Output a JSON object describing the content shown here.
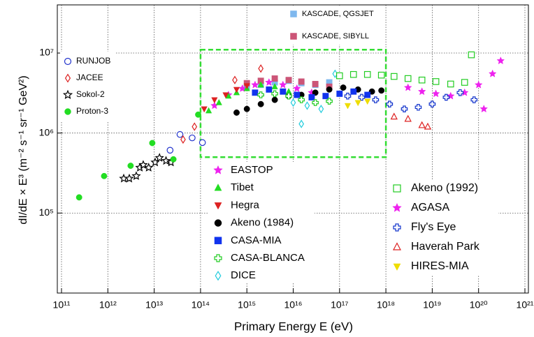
{
  "chart_data": {
    "type": "scatter",
    "x_label": "Primary Energy E (eV)",
    "y_label": "dI/dE × E³   (m⁻² s⁻¹ sr⁻¹ GeV²)",
    "xscale": "log",
    "yscale": "log",
    "grid": true,
    "xlim": [
      100000000000.0,
      1e+21
    ],
    "ylim": [
      10000.0,
      40000000.0
    ],
    "xticks": [
      {
        "value": 100000000000.0,
        "label": "10¹¹"
      },
      {
        "value": 1000000000000.0,
        "label": "10¹²"
      },
      {
        "value": 10000000000000.0,
        "label": "10¹³"
      },
      {
        "value": 100000000000000.0,
        "label": "10¹⁴"
      },
      {
        "value": 1000000000000000.0,
        "label": "10¹⁵"
      },
      {
        "value": 1e+16,
        "label": "10¹⁶"
      },
      {
        "value": 1e+17,
        "label": "10¹⁷"
      },
      {
        "value": 1e+18,
        "label": "10¹⁸"
      },
      {
        "value": 1e+19,
        "label": "10¹⁹"
      },
      {
        "value": 1e+20,
        "label": "10²⁰"
      },
      {
        "value": 1e+21,
        "label": "10²¹"
      }
    ],
    "yticks": [
      {
        "value": 100000.0,
        "label": "10⁵"
      },
      {
        "value": 1000000.0,
        "label": "10⁶"
      },
      {
        "value": 10000000.0,
        "label": "10⁷"
      }
    ],
    "highlight_box": {
      "x": [
        100000000000000.0,
        1e+18
      ],
      "y": [
        500000.0,
        11000000.0
      ],
      "color": "#33dd33"
    },
    "series": [
      {
        "name": "RUNJOB",
        "color": "#2233cc",
        "marker": "circle-open",
        "x": [
          22000000000000.0,
          36000000000000.0,
          66000000000000.0,
          110000000000000.0
        ],
        "values": [
          610000.0,
          960000.0,
          870000.0,
          760000.0
        ]
      },
      {
        "name": "JACEE",
        "color": "#dd2222",
        "marker": "diamond-open",
        "x": [
          42000000000000.0,
          74000000000000.0,
          550000000000000.0,
          2000000000000000.0
        ],
        "values": [
          830000.0,
          1200000.0,
          4600000.0,
          6400000.0
        ]
      },
      {
        "name": "Sokol-2",
        "color": "#000000",
        "marker": "star-open",
        "x": [
          2200000000000.0,
          2900000000000.0,
          4100000000000.0,
          4900000000000.0,
          5800000000000.0,
          7600000000000.0,
          10500000000000.0,
          13000000000000.0,
          18000000000000.0,
          23000000000000.0
        ],
        "values": [
          270000.0,
          270000.0,
          290000.0,
          370000.0,
          400000.0,
          370000.0,
          430000.0,
          490000.0,
          450000.0,
          430000.0
        ]
      },
      {
        "name": "Proton-3",
        "color": "#22dd22",
        "marker": "circle",
        "x": [
          240000000000.0,
          830000000000.0,
          3100000000000.0,
          9100000000000.0,
          26000000000000.0,
          89000000000000.0
        ],
        "values": [
          157000.0,
          290000.0,
          390000.0,
          750000.0,
          470000.0,
          1700000.0
        ]
      },
      {
        "name": "KASCADE, QGSJET",
        "color": "#7fb8ee",
        "marker": "square",
        "x": [
          1000000000000000.0,
          2000000000000000.0,
          4000000000000000.0,
          8000000000000000.0,
          1.5e+16,
          3e+16,
          6e+16
        ],
        "values": [
          3800000.0,
          4000000.0,
          4300000.0,
          4500000.0,
          4200000.0,
          4000000.0,
          4300000.0
        ]
      },
      {
        "name": "KASCADE, SIBYLL",
        "color": "#cc5577",
        "marker": "square",
        "x": [
          1000000000000000.0,
          2000000000000000.0,
          4000000000000000.0,
          8000000000000000.0,
          1.5e+16,
          3e+16,
          6e+16
        ],
        "values": [
          4200000.0,
          4500000.0,
          4800000.0,
          4600000.0,
          4400000.0,
          4100000.0,
          3800000.0
        ]
      },
      {
        "name": "EASTOP",
        "color": "#ee22ee",
        "marker": "star",
        "x": [
          200000000000000.0,
          400000000000000.0,
          800000000000000.0,
          1500000000000000.0,
          3000000000000000.0,
          6000000000000000.0,
          1.2e+16,
          2.5e+16
        ],
        "values": [
          2200000.0,
          3000000.0,
          3600000.0,
          4000000.0,
          4300000.0,
          4000000.0,
          3600000.0,
          3200000.0
        ]
      },
      {
        "name": "Tibet",
        "color": "#22dd22",
        "marker": "triangle",
        "x": [
          150000000000000.0,
          250000000000000.0,
          400000000000000.0,
          600000000000000.0,
          1000000000000000.0,
          2000000000000000.0,
          4000000000000000.0,
          8000000000000000.0
        ],
        "values": [
          1900000.0,
          2400000.0,
          2900000.0,
          3200000.0,
          3600000.0,
          4000000.0,
          3800000.0,
          3300000.0
        ]
      },
      {
        "name": "Hegra",
        "color": "#dd2222",
        "marker": "triangle-down",
        "x": [
          120000000000000.0,
          200000000000000.0,
          350000000000000.0,
          600000000000000.0,
          1000000000000000.0
        ],
        "values": [
          2000000.0,
          2600000.0,
          3000000.0,
          3500000.0,
          3900000.0
        ]
      },
      {
        "name": "Akeno (1984)",
        "color": "#000000",
        "marker": "circle",
        "x": [
          600000000000000.0,
          1000000000000000.0,
          2000000000000000.0,
          4000000000000000.0,
          8000000000000000.0,
          1.5e+16,
          3e+16,
          6e+16,
          1.2e+17,
          2.5e+17,
          5e+17,
          8e+17
        ],
        "values": [
          1800000.0,
          2000000.0,
          2300000.0,
          2600000.0,
          2900000.0,
          3000000.0,
          3200000.0,
          3500000.0,
          3700000.0,
          3500000.0,
          3300000.0,
          3400000.0
        ]
      },
      {
        "name": "CASA-MIA",
        "color": "#1133ee",
        "marker": "square",
        "x": [
          1500000000000000.0,
          3000000000000000.0,
          6000000000000000.0,
          1.2e+16,
          2.5e+16,
          5e+16,
          1e+17,
          2e+17,
          4e+17
        ],
        "values": [
          3200000.0,
          3500000.0,
          3300000.0,
          3000000.0,
          2800000.0,
          2900000.0,
          3100000.0,
          3300000.0,
          3000000.0
        ]
      },
      {
        "name": "CASA-BLANCA",
        "color": "#22cc22",
        "marker": "cross-open",
        "x": [
          2000000000000000.0,
          4000000000000000.0,
          8000000000000000.0,
          1.5e+16,
          3e+16,
          6e+16
        ],
        "values": [
          3000000.0,
          3100000.0,
          2900000.0,
          2600000.0,
          2400000.0,
          2500000.0
        ]
      },
      {
        "name": "DICE",
        "color": "#22ccdd",
        "marker": "diamond-open",
        "x": [
          1e+16,
          1.5e+16,
          2e+16,
          4e+16,
          8e+16
        ],
        "values": [
          2400000.0,
          1300000.0,
          2200000.0,
          2000000.0,
          5500000.0
        ]
      },
      {
        "name": "Akeno (1992)",
        "color": "#22cc22",
        "marker": "square-open",
        "x": [
          1e+17,
          2e+17,
          4e+17,
          8e+17,
          1.5e+18,
          3e+18,
          6e+18,
          1.2e+19,
          2.5e+19,
          5e+19,
          7e+19
        ],
        "values": [
          5200000.0,
          5400000.0,
          5400000.0,
          5300000.0,
          5100000.0,
          4800000.0,
          4600000.0,
          4400000.0,
          4100000.0,
          4300000.0,
          9500000.0
        ]
      },
      {
        "name": "AGASA",
        "color": "#ee22ee",
        "marker": "star",
        "x": [
          3e+18,
          6e+18,
          1.2e+19,
          2.5e+19,
          5e+19,
          1e+20,
          1.3e+20,
          2e+20,
          3e+20
        ],
        "values": [
          3700000.0,
          3300000.0,
          3100000.0,
          2900000.0,
          3200000.0,
          4000000.0,
          2000000.0,
          5500000.0,
          8000000.0
        ]
      },
      {
        "name": "Fly's Eye",
        "color": "#1133cc",
        "marker": "cross-open",
        "x": [
          1.5e+17,
          3e+17,
          6e+17,
          1.2e+18,
          2.5e+18,
          5e+18,
          1e+19,
          2e+19,
          4e+19,
          8e+19
        ],
        "values": [
          2900000.0,
          2800000.0,
          2600000.0,
          2300000.0,
          2000000.0,
          2100000.0,
          2300000.0,
          2800000.0,
          3200000.0,
          2600000.0
        ]
      },
      {
        "name": "Haverah Park",
        "color": "#dd2222",
        "marker": "triangle-open",
        "x": [
          1.5e+18,
          3e+18,
          6e+18,
          8e+18
        ],
        "values": [
          1600000.0,
          1500000.0,
          1250000.0,
          1200000.0
        ]
      },
      {
        "name": "HIRES-MIA",
        "color": "#eedd00",
        "marker": "triangle-down",
        "x": [
          1.5e+17,
          2.5e+17,
          4e+17
        ],
        "values": [
          2200000.0,
          2400000.0,
          2500000.0
        ]
      }
    ]
  }
}
